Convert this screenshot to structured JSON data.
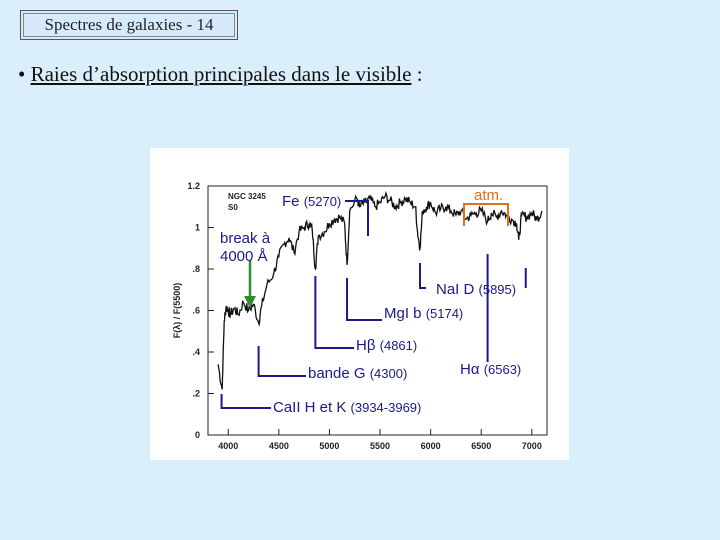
{
  "slide": {
    "title": "Spectres de galaxies - 14",
    "bullet": "•",
    "heading_underlined": "Raies d’absorption principales dans le visible",
    "heading_suffix": " :"
  },
  "chart_data": {
    "type": "line",
    "title": "",
    "object_label": "NGC 3245",
    "object_type": "S0",
    "xlabel": "",
    "ylabel": "F(λ) / F(5500)",
    "xlim": [
      3800,
      7150
    ],
    "ylim": [
      0,
      1.2
    ],
    "xticks": [
      "4000",
      "4500",
      "5000",
      "5500",
      "6000",
      "6500",
      "7000"
    ],
    "yticks": [
      "0",
      ".2",
      ".4",
      ".6",
      ".8",
      "1",
      "1.2"
    ],
    "series": [
      {
        "x": [
          3900,
          3940,
          3960,
          3980,
          4000,
          4020,
          4060,
          4100,
          4150,
          4200,
          4250,
          4300,
          4330,
          4380,
          4450,
          4500,
          4550,
          4600,
          4650,
          4700,
          4750,
          4800,
          4830,
          4861,
          4890,
          4950,
          5000,
          5050,
          5100,
          5150,
          5174,
          5200,
          5270,
          5300,
          5350,
          5400,
          5450,
          5500,
          5550,
          5600,
          5650,
          5700,
          5750,
          5800,
          5850,
          5870,
          5895,
          5920,
          5960,
          6000,
          6050,
          6100,
          6150,
          6200,
          6250,
          6300,
          6350,
          6400,
          6450,
          6500,
          6563,
          6600,
          6650,
          6700,
          6750,
          6800,
          6850,
          6870,
          6900,
          6950,
          7000,
          7050,
          7100
        ],
        "y": [
          0.34,
          0.22,
          0.55,
          0.62,
          0.6,
          0.58,
          0.61,
          0.58,
          0.64,
          0.6,
          0.63,
          0.54,
          0.62,
          0.72,
          0.78,
          0.86,
          0.92,
          0.95,
          0.88,
          0.98,
          1.0,
          1.02,
          0.99,
          0.8,
          0.96,
          0.98,
          1.02,
          1.04,
          1.05,
          1.02,
          0.82,
          1.08,
          1.14,
          1.1,
          1.12,
          1.14,
          1.1,
          1.12,
          1.15,
          1.13,
          1.1,
          1.12,
          1.14,
          1.12,
          1.1,
          0.98,
          0.9,
          1.08,
          1.1,
          1.12,
          1.07,
          1.09,
          1.1,
          1.08,
          1.06,
          1.08,
          1.04,
          1.06,
          1.07,
          1.08,
          1.03,
          1.07,
          1.05,
          1.08,
          1.06,
          1.04,
          1.02,
          0.94,
          1.06,
          1.05,
          1.07,
          1.04,
          1.08
        ]
      }
    ],
    "annotations": [
      {
        "label": "Fe",
        "detail": "(5270)",
        "wavelength": 5270
      },
      {
        "label": "atm.",
        "detail": "",
        "wavelength": [
          6900,
          6950
        ]
      },
      {
        "label": "break à",
        "label2": "4000 Å",
        "wavelength": 4000
      },
      {
        "label": "NaI D",
        "detail": "(5895)",
        "wavelength": 5895
      },
      {
        "label": "MgI b",
        "detail": "(5174)",
        "wavelength": 5174
      },
      {
        "label": "Hβ",
        "detail": "(4861)",
        "wavelength": 4861
      },
      {
        "label": "bande G",
        "detail": "(4300)",
        "wavelength": 4300
      },
      {
        "label": "Hα",
        "detail": "(6563)",
        "wavelength": 6563
      },
      {
        "label": "CaII H et K",
        "detail": "(3934-3969)",
        "wavelength": [
          3934,
          3969
        ]
      }
    ],
    "colors": {
      "annotation": "#1a1a8c",
      "atmospheric": "#e0701a",
      "break_arrow": "#2e8b2e",
      "spectrum": "#111111"
    }
  }
}
